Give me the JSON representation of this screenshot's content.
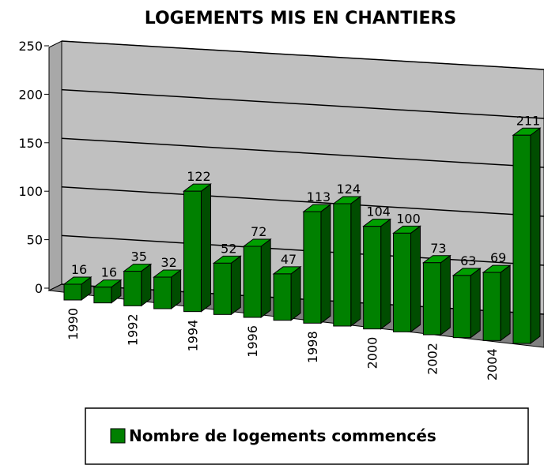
{
  "chart_data": {
    "type": "bar3d",
    "title": "LOGEMENTS MIS EN CHANTIERS",
    "categories": [
      "1990",
      null,
      "1992",
      null,
      "1994",
      null,
      "1996",
      null,
      "1998",
      null,
      "2000",
      null,
      "2002",
      null,
      "2004",
      null
    ],
    "series": [
      {
        "name": "Nombre de logements commencés",
        "color": "#008000",
        "values": [
          16,
          16,
          35,
          32,
          122,
          52,
          72,
          47,
          113,
          124,
          104,
          100,
          73,
          63,
          69,
          211
        ]
      }
    ],
    "ylim": [
      0,
      250
    ],
    "yticks": [
      0,
      50,
      100,
      150,
      200,
      250
    ],
    "grid": true,
    "legend": "bottom"
  }
}
